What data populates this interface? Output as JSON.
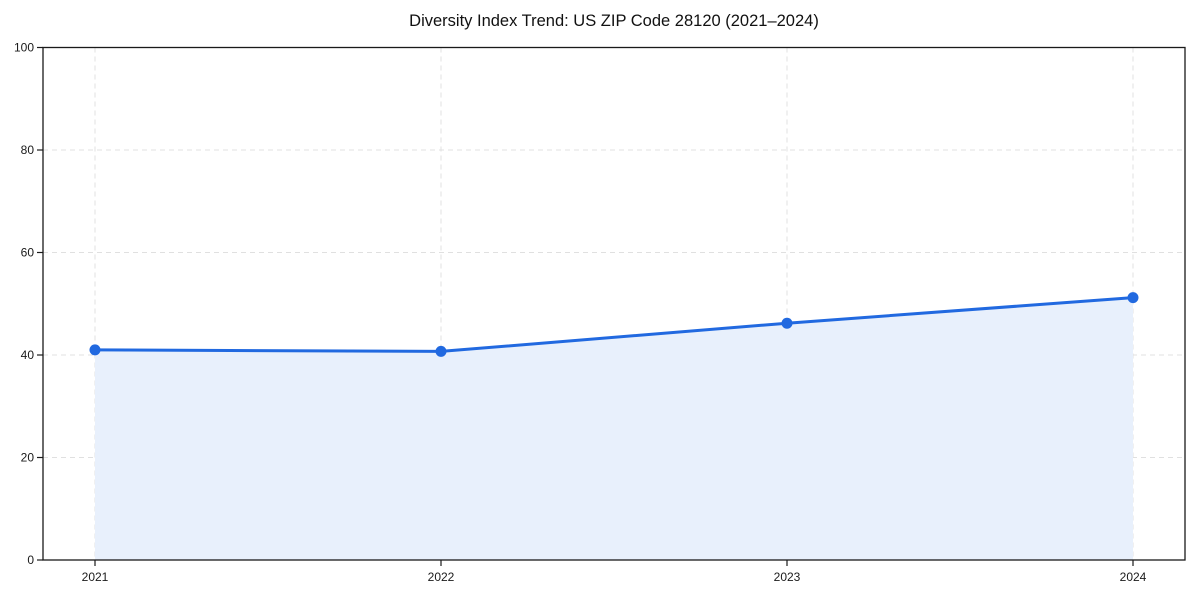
{
  "title": "Diversity Index Trend: US ZIP Code 28120 (2021–2024)",
  "chart_data": {
    "type": "line",
    "title": "Diversity Index Trend: US ZIP Code 28120 (2021–2024)",
    "x": [
      "2021",
      "2022",
      "2023",
      "2024"
    ],
    "series": [
      {
        "name": "Diversity Index",
        "values": [
          41,
          40.7,
          46.2,
          51.2
        ]
      }
    ],
    "xlabel": "",
    "ylabel": "",
    "ylim": [
      0,
      100
    ],
    "yticks": [
      0,
      20,
      40,
      60,
      80,
      100
    ],
    "xticks": [
      "2021",
      "2022",
      "2023",
      "2024"
    ],
    "grid": "dashed-both",
    "legend": "none",
    "area_fill": true,
    "colors": {
      "line": "#2169e0",
      "marker": "#2169e0",
      "area_fill": "#e8f0fc",
      "grid": "#e0e0e0",
      "spine": "#1a1a1a",
      "background": "#ffffff"
    }
  }
}
